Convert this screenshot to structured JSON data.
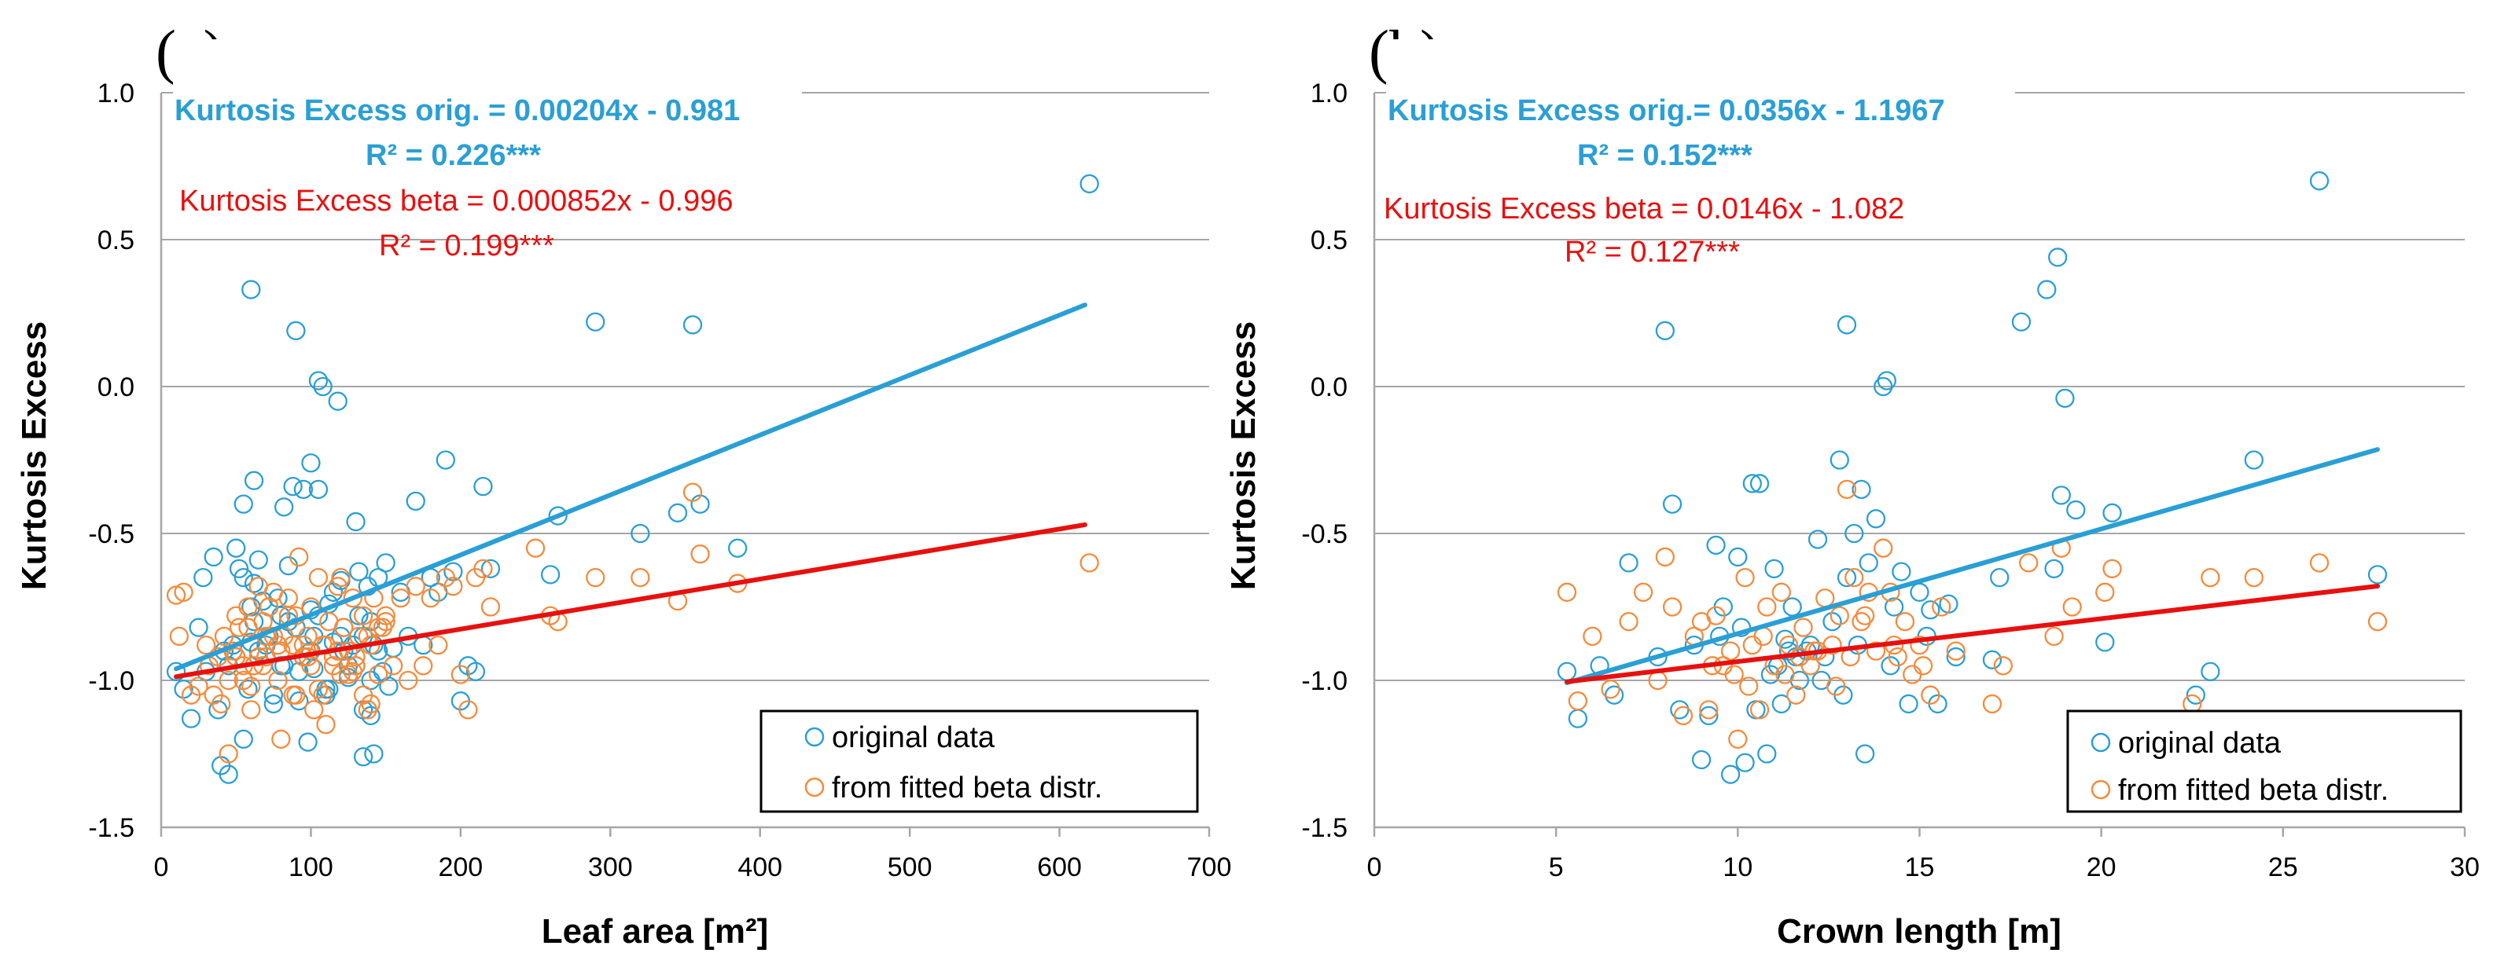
{
  "chart_data": [
    {
      "type": "scatter",
      "panel_label": "(a)",
      "xlabel": "Leaf area [m²]",
      "ylabel": "Kurtosis Excess",
      "xlim": [
        0,
        700
      ],
      "ylim": [
        -1.5,
        1.0
      ],
      "xticks": [
        0,
        100,
        200,
        300,
        400,
        500,
        600,
        700
      ],
      "yticks": [
        -1.5,
        -1.0,
        -0.5,
        0.0,
        0.5,
        1.0
      ],
      "xtick_labels": [
        "0",
        "100",
        "200",
        "300",
        "400",
        "500",
        "600",
        "700"
      ],
      "ytick_labels": [
        "-1.5",
        "-1.0",
        "-0.5",
        "0.0",
        "0.5",
        "1.0"
      ],
      "grid": "horizontal",
      "legend_position": "bottom-right",
      "colors": {
        "orig": "#2a9fd6",
        "beta": "#f58b3c",
        "orig_line": "#2a9fd6",
        "beta_line": "#e8100f"
      },
      "equations": {
        "orig_eq": "Kurtosis Excess orig. = 0.00204x - 0.981",
        "orig_r2": "R² = 0.226***",
        "beta_eq": "Kurtosis Excess beta = 0.000852x - 0.996",
        "beta_r2": "R² = 0.199***"
      },
      "series": [
        {
          "name": "original data",
          "marker": "circle-open",
          "x": [
            10,
            15,
            20,
            25,
            28,
            30,
            35,
            38,
            40,
            42,
            45,
            48,
            50,
            52,
            55,
            55,
            58,
            60,
            60,
            62,
            62,
            65,
            68,
            70,
            72,
            75,
            78,
            80,
            82,
            85,
            88,
            90,
            92,
            95,
            95,
            98,
            100,
            100,
            102,
            105,
            105,
            108,
            110,
            112,
            115,
            118,
            120,
            122,
            125,
            128,
            130,
            132,
            135,
            135,
            138,
            140,
            140,
            142,
            145,
            148,
            150,
            155,
            160,
            165,
            170,
            175,
            180,
            185,
            190,
            195,
            200,
            205,
            210,
            215,
            220,
            260,
            265,
            290,
            320,
            345,
            355,
            360,
            385,
            620,
            62,
            72,
            82,
            92,
            102,
            112,
            122,
            132,
            142,
            152,
            45,
            55,
            65,
            75,
            85,
            95,
            105,
            115,
            125,
            135,
            145,
            50,
            60,
            70,
            80,
            90,
            100,
            110,
            120,
            130,
            140
          ],
          "y": [
            -0.97,
            -1.03,
            -1.13,
            -0.82,
            -0.65,
            -0.97,
            -0.58,
            -1.1,
            -1.29,
            -0.9,
            -1.32,
            -0.88,
            -0.55,
            -0.62,
            -1.2,
            -0.4,
            -1.03,
            -0.87,
            0.33,
            -0.32,
            -0.67,
            -0.59,
            -0.73,
            -0.92,
            -0.85,
            -1.08,
            -0.72,
            -0.78,
            -0.41,
            -0.61,
            -0.34,
            0.19,
            -1.07,
            -0.35,
            -0.92,
            -1.21,
            -0.76,
            -0.26,
            -0.96,
            -0.35,
            0.02,
            0.0,
            -1.05,
            -0.74,
            -0.7,
            -0.05,
            -0.66,
            -0.82,
            -0.95,
            -0.88,
            -0.46,
            -0.63,
            -1.26,
            -0.85,
            -0.68,
            -1.12,
            -0.8,
            -1.25,
            -0.65,
            -0.97,
            -0.6,
            -0.89,
            -0.7,
            -0.85,
            -0.39,
            -0.88,
            -0.65,
            -0.7,
            -0.25,
            -0.63,
            -1.07,
            -0.95,
            -0.97,
            -0.34,
            -0.62,
            -0.64,
            -0.44,
            0.22,
            -0.5,
            -0.43,
            0.21,
            -0.4,
            -0.55,
            0.69,
            -0.8,
            -0.75,
            -0.95,
            -0.97,
            -0.85,
            -1.03,
            -0.9,
            -0.78,
            -0.88,
            -1.02,
            -0.95,
            -0.65,
            -0.9,
            -1.05,
            -0.8,
            -0.92,
            -0.78,
            -0.87,
            -0.99,
            -1.1,
            -0.9,
            -0.92,
            -0.75,
            -0.88,
            -0.95,
            -0.82,
            -0.9,
            -1.03,
            -0.85,
            -0.95,
            -1.0
          ]
        },
        {
          "name": "from fitted beta distr.",
          "marker": "circle-open",
          "x": [
            10,
            12,
            15,
            20,
            25,
            30,
            32,
            35,
            38,
            40,
            42,
            45,
            48,
            50,
            52,
            55,
            58,
            60,
            62,
            65,
            68,
            70,
            72,
            75,
            78,
            80,
            82,
            85,
            88,
            90,
            92,
            95,
            98,
            100,
            102,
            105,
            108,
            110,
            112,
            115,
            118,
            120,
            122,
            125,
            128,
            130,
            132,
            135,
            138,
            140,
            142,
            145,
            148,
            150,
            155,
            160,
            165,
            170,
            175,
            180,
            185,
            190,
            195,
            200,
            205,
            210,
            215,
            220,
            250,
            260,
            265,
            290,
            320,
            345,
            355,
            360,
            385,
            620,
            55,
            65,
            75,
            85,
            95,
            105,
            115,
            125,
            135,
            145,
            50,
            60,
            70,
            80,
            90,
            100,
            110,
            120,
            130,
            140,
            150,
            45,
            58,
            68,
            78,
            88,
            98,
            108,
            118,
            128,
            138
          ],
          "y": [
            -0.71,
            -0.85,
            -0.7,
            -1.05,
            -1.02,
            -0.88,
            -0.95,
            -1.05,
            -0.92,
            -1.08,
            -0.85,
            -1.25,
            -0.9,
            -0.78,
            -0.82,
            -0.95,
            -0.75,
            -1.1,
            -0.95,
            -0.68,
            -0.8,
            -0.92,
            -0.75,
            -0.7,
            -0.88,
            -1.2,
            -0.85,
            -0.72,
            -1.05,
            -0.78,
            -0.58,
            -0.92,
            -0.85,
            -0.75,
            -1.1,
            -0.65,
            -0.88,
            -1.15,
            -0.8,
            -0.95,
            -0.68,
            -0.65,
            -0.82,
            -0.9,
            -0.72,
            -0.95,
            -0.85,
            -0.78,
            -1.1,
            -0.88,
            -0.72,
            -0.98,
            -0.82,
            -0.78,
            -0.95,
            -0.72,
            -1.0,
            -0.68,
            -0.95,
            -0.72,
            -0.88,
            -0.65,
            -0.68,
            -0.98,
            -1.1,
            -0.65,
            -0.62,
            -0.75,
            -0.55,
            -0.78,
            -0.8,
            -0.65,
            -0.65,
            -0.73,
            -0.36,
            -0.57,
            -0.67,
            -0.6,
            -1.0,
            -0.92,
            -0.85,
            -0.78,
            -0.88,
            -1.03,
            -0.92,
            -0.98,
            -1.05,
            -0.82,
            -0.92,
            -1.02,
            -0.85,
            -0.9,
            -1.05,
            -0.95,
            -0.88,
            -0.98,
            -0.92,
            -1.08,
            -0.8,
            -1.0,
            -0.82,
            -0.95,
            -1.0,
            -0.88,
            -0.92,
            -1.05,
            -0.9,
            -0.97,
            -0.85
          ]
        }
      ],
      "trendlines": [
        {
          "series": "original data",
          "slope": 0.00204,
          "intercept": -0.981,
          "x_range": [
            10,
            617
          ]
        },
        {
          "series": "from fitted beta distr.",
          "slope": 0.000852,
          "intercept": -0.996,
          "x_range": [
            10,
            617
          ]
        }
      ]
    },
    {
      "type": "scatter",
      "panel_label": "(b)",
      "xlabel": "Crown length [m]",
      "ylabel": "Kurtosis Excess",
      "xlim": [
        0,
        30
      ],
      "ylim": [
        -1.5,
        1.0
      ],
      "xticks": [
        0,
        5,
        10,
        15,
        20,
        25,
        30
      ],
      "yticks": [
        -1.5,
        -1.0,
        -0.5,
        0.0,
        0.5,
        1.0
      ],
      "xtick_labels": [
        "0",
        "5",
        "10",
        "15",
        "20",
        "25",
        "30"
      ],
      "ytick_labels": [
        "-1.5",
        "-1.0",
        "-0.5",
        "0.0",
        "0.5",
        "1.0"
      ],
      "grid": "horizontal",
      "legend_position": "bottom-right",
      "colors": {
        "orig": "#2a9fd6",
        "beta": "#f58b3c",
        "orig_line": "#2a9fd6",
        "beta_line": "#e8100f"
      },
      "equations": {
        "orig_eq": "Kurtosis Excess orig.= 0.0356x - 1.1967",
        "orig_r2": "R² = 0.152***",
        "beta_eq": "Kurtosis Excess beta = 0.0146x - 1.082",
        "beta_r2": "R² = 0.127***"
      },
      "series": [
        {
          "name": "original data",
          "marker": "circle-open",
          "x": [
            5.3,
            5.6,
            6.2,
            6.6,
            7.0,
            7.8,
            8.0,
            8.2,
            8.4,
            8.8,
            9.0,
            9.2,
            9.4,
            9.6,
            9.8,
            10.0,
            10.2,
            10.4,
            10.5,
            10.6,
            10.8,
            11.0,
            11.1,
            11.2,
            11.3,
            11.5,
            11.7,
            11.9,
            12.0,
            12.2,
            12.4,
            12.6,
            12.8,
            13.0,
            13.0,
            13.2,
            13.4,
            13.5,
            13.6,
            13.8,
            14.0,
            14.1,
            14.3,
            14.5,
            14.7,
            15.0,
            15.3,
            15.5,
            15.8,
            16.0,
            17.0,
            17.2,
            17.8,
            18.5,
            18.7,
            18.8,
            18.9,
            19.0,
            19.3,
            20.1,
            20.3,
            22.6,
            23.0,
            24.2,
            26.0,
            27.6,
            9.5,
            10.9,
            11.6,
            12.3,
            13.3,
            14.2,
            15.2,
            12.9,
            11.4,
            10.1
          ],
          "y": [
            -0.97,
            -1.13,
            -0.95,
            -1.05,
            -0.6,
            -0.92,
            0.19,
            -0.4,
            -1.1,
            -0.88,
            -1.27,
            -1.12,
            -0.54,
            -0.75,
            -1.32,
            -0.58,
            -1.28,
            -0.33,
            -1.1,
            -0.33,
            -1.25,
            -0.62,
            -0.95,
            -1.08,
            -0.86,
            -0.75,
            -1.0,
            -0.9,
            -0.88,
            -0.52,
            -0.92,
            -0.8,
            -0.25,
            0.21,
            -0.65,
            -0.5,
            -0.35,
            -1.25,
            -0.6,
            -0.45,
            0.0,
            0.02,
            -0.75,
            -0.63,
            -1.08,
            -0.7,
            -0.76,
            -1.08,
            -0.74,
            -0.92,
            -0.93,
            -0.65,
            0.22,
            0.33,
            -0.62,
            0.44,
            -0.37,
            -0.04,
            -0.42,
            -0.87,
            -0.43,
            -1.05,
            -0.97,
            -0.25,
            0.7,
            -0.64,
            -0.85,
            -0.98,
            -0.92,
            -1.0,
            -0.88,
            -0.95,
            -0.85,
            -1.05,
            -0.9,
            -0.82
          ]
        },
        {
          "name": "from fitted beta distr.",
          "marker": "circle-open",
          "x": [
            5.3,
            5.6,
            6.0,
            6.5,
            7.0,
            7.4,
            7.8,
            8.0,
            8.2,
            8.5,
            8.8,
            9.0,
            9.2,
            9.4,
            9.6,
            9.8,
            10.0,
            10.2,
            10.4,
            10.6,
            10.8,
            11.0,
            11.2,
            11.4,
            11.6,
            11.8,
            12.0,
            12.2,
            12.4,
            12.6,
            12.8,
            13.0,
            13.2,
            13.4,
            13.6,
            13.8,
            14.0,
            14.2,
            14.4,
            14.6,
            14.8,
            15.0,
            15.3,
            15.6,
            16.0,
            17.0,
            17.3,
            18.0,
            18.7,
            18.9,
            19.2,
            20.1,
            20.3,
            22.5,
            23.0,
            24.2,
            26.0,
            27.6,
            9.3,
            10.3,
            11.3,
            12.1,
            13.1,
            14.3,
            15.1,
            12.7,
            11.7,
            10.7,
            9.9,
            13.5
          ],
          "y": [
            -0.7,
            -1.07,
            -0.85,
            -1.03,
            -0.8,
            -0.7,
            -1.0,
            -0.58,
            -0.75,
            -1.12,
            -0.85,
            -0.8,
            -1.1,
            -0.78,
            -0.95,
            -0.9,
            -1.2,
            -0.65,
            -0.88,
            -1.1,
            -0.75,
            -0.95,
            -0.7,
            -0.88,
            -1.05,
            -0.82,
            -0.95,
            -0.9,
            -0.72,
            -0.88,
            -0.78,
            -0.35,
            -0.65,
            -0.8,
            -0.7,
            -0.9,
            -0.55,
            -0.7,
            -0.92,
            -0.8,
            -0.98,
            -0.88,
            -1.05,
            -0.75,
            -0.9,
            -1.08,
            -0.95,
            -0.6,
            -0.85,
            -0.55,
            -0.75,
            -0.7,
            -0.62,
            -1.08,
            -0.65,
            -0.65,
            -0.6,
            -0.8,
            -0.95,
            -1.02,
            -0.98,
            -0.9,
            -0.92,
            -0.88,
            -0.95,
            -1.02,
            -0.92,
            -0.85,
            -0.98,
            -0.78
          ]
        }
      ],
      "trendlines": [
        {
          "series": "original data",
          "slope": 0.0356,
          "intercept": -1.1967,
          "x_range": [
            5.3,
            27.6
          ]
        },
        {
          "series": "from fitted beta distr.",
          "slope": 0.0146,
          "intercept": -1.082,
          "x_range": [
            5.3,
            27.6
          ]
        }
      ]
    }
  ]
}
